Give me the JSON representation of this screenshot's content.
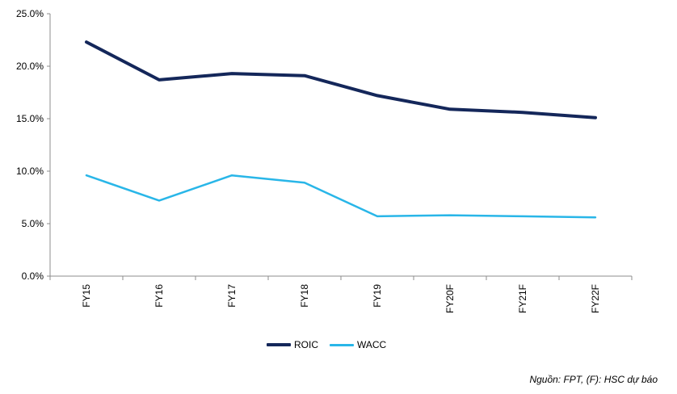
{
  "chart_data": {
    "type": "line",
    "title": "",
    "xlabel": "",
    "ylabel": "",
    "categories": [
      "FY15",
      "FY16",
      "FY17",
      "FY18",
      "FY19",
      "FY20F",
      "FY21F",
      "FY22F"
    ],
    "ylim": [
      0,
      25
    ],
    "yticks": [
      0,
      5,
      10,
      15,
      20,
      25
    ],
    "ytick_labels": [
      "0.0%",
      "5.0%",
      "10.0%",
      "15.0%",
      "20.0%",
      "25.0%"
    ],
    "grid": false,
    "legend_position": "bottom",
    "series": [
      {
        "name": "ROIC",
        "color": "#14275A",
        "values": [
          22.3,
          18.7,
          19.3,
          19.1,
          17.2,
          15.9,
          15.6,
          15.1
        ]
      },
      {
        "name": "WACC",
        "color": "#29B6E8",
        "values": [
          9.6,
          7.2,
          9.6,
          8.9,
          5.7,
          5.8,
          5.7,
          5.6
        ]
      }
    ]
  },
  "source_note": "Nguồn: FPT, (F): HSC dự báo"
}
